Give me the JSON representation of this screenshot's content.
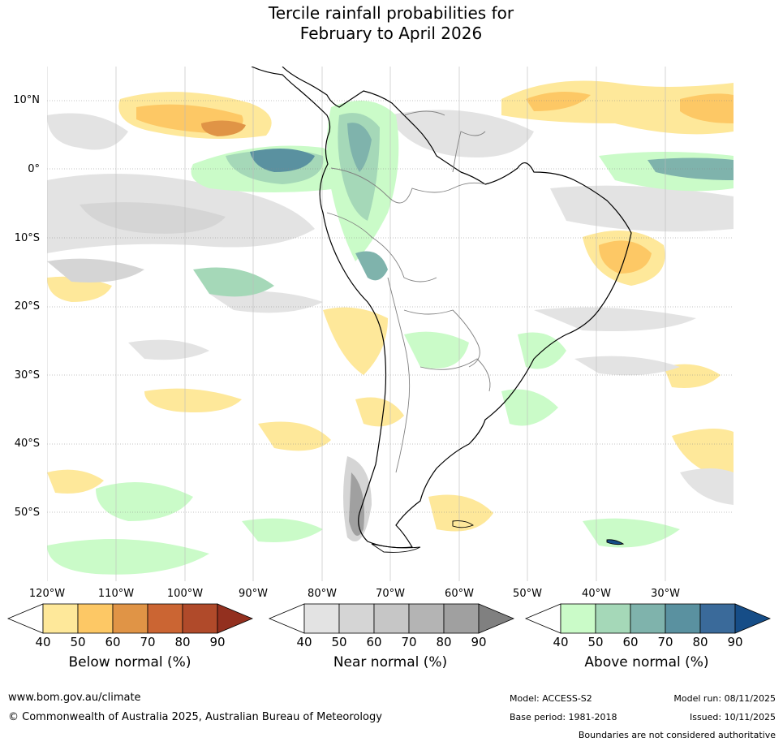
{
  "title": {
    "line1": "Tercile rainfall probabilities for",
    "line2": "February to April 2026"
  },
  "map": {
    "region": "South America",
    "latitude_labels": [
      "10°N",
      "0°",
      "10°S",
      "20°S",
      "30°S",
      "40°S",
      "50°S"
    ],
    "longitude_labels": [
      "120°W",
      "110°W",
      "100°W",
      "90°W",
      "80°W",
      "70°W",
      "60°W",
      "50°W",
      "40°W",
      "30°W"
    ]
  },
  "legends": [
    {
      "title": "Below normal (%)",
      "ticks": [
        "40",
        "50",
        "60",
        "70",
        "80",
        "90"
      ],
      "colors": [
        "#ffffff",
        "#fee89a",
        "#fdc865",
        "#e09446",
        "#cb6533",
        "#b04a2a",
        "#93301f"
      ]
    },
    {
      "title": "Near normal (%)",
      "ticks": [
        "40",
        "50",
        "60",
        "70",
        "80",
        "90"
      ],
      "colors": [
        "#ffffff",
        "#e3e3e3",
        "#d5d5d5",
        "#c6c6c6",
        "#b4b4b4",
        "#a0a0a0",
        "#808080"
      ]
    },
    {
      "title": "Above normal (%)",
      "ticks": [
        "40",
        "50",
        "60",
        "70",
        "80",
        "90"
      ],
      "colors": [
        "#ffffff",
        "#cafbc8",
        "#a5d8b8",
        "#7fb3ac",
        "#5a91a0",
        "#3a6a9a",
        "#164d87"
      ]
    }
  ],
  "footer": {
    "website": "www.bom.gov.au/climate",
    "copyright": "© Commonwealth of Australia 2025, Australian Bureau of Meteorology",
    "model": "Model: ACCESS-S2",
    "base_period": "Base period: 1981-2018",
    "model_run": "Model run: 08/11/2025",
    "issued": "Issued: 10/11/2025",
    "disclaimer": "Boundaries are not considered authoritative"
  },
  "colors": {
    "coastline": "#000000",
    "borders": "#808080",
    "gridlines": "#888888"
  }
}
